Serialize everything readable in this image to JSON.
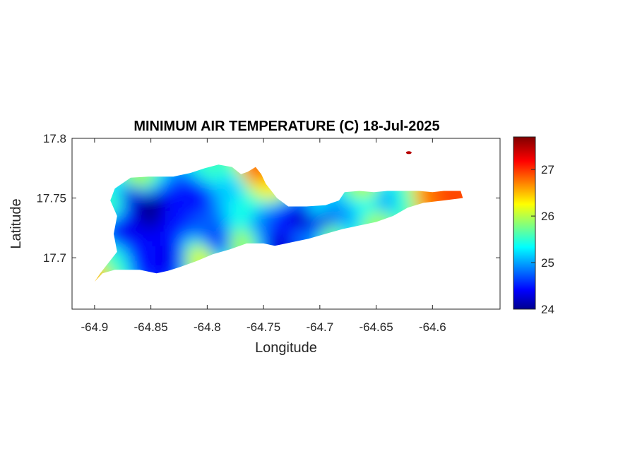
{
  "figure": {
    "title": "MINIMUM AIR TEMPERATURE (C) 18-Jul-2025",
    "xlabel": "Longitude",
    "ylabel": "Latitude"
  },
  "chart_data": {
    "type": "heatmap",
    "title": "MINIMUM AIR TEMPERATURE (C) 18-Jul-2025",
    "xlabel": "Longitude",
    "ylabel": "Latitude",
    "xlim": [
      -64.92,
      -64.54
    ],
    "ylim": [
      17.657,
      17.8
    ],
    "xticks": [
      -64.9,
      -64.85,
      -64.8,
      -64.75,
      -64.7,
      -64.65,
      -64.6
    ],
    "xtick_labels": [
      "-64.9",
      "-64.85",
      "-64.8",
      "-64.75",
      "-64.7",
      "-64.65",
      "-64.6"
    ],
    "yticks": [
      17.7,
      17.75,
      17.8
    ],
    "ytick_labels": [
      "17.7",
      "17.75",
      "17.8"
    ],
    "colorbar": {
      "colormap": "jet",
      "range": [
        24,
        27.7
      ],
      "ticks": [
        24,
        25,
        26,
        27
      ],
      "tick_labels": [
        "24",
        "25",
        "26",
        "27"
      ]
    },
    "grid": false,
    "island_outline": [
      [
        -64.9,
        17.68
      ],
      [
        -64.893,
        17.687
      ],
      [
        -64.882,
        17.69
      ],
      [
        -64.86,
        17.69
      ],
      [
        -64.845,
        17.687
      ],
      [
        -64.835,
        17.689
      ],
      [
        -64.825,
        17.692
      ],
      [
        -64.81,
        17.697
      ],
      [
        -64.795,
        17.703
      ],
      [
        -64.78,
        17.707
      ],
      [
        -64.765,
        17.712
      ],
      [
        -64.75,
        17.712
      ],
      [
        -64.74,
        17.71
      ],
      [
        -64.725,
        17.713
      ],
      [
        -64.71,
        17.716
      ],
      [
        -64.695,
        17.72
      ],
      [
        -64.68,
        17.724
      ],
      [
        -64.665,
        17.727
      ],
      [
        -64.65,
        17.73
      ],
      [
        -64.635,
        17.735
      ],
      [
        -64.622,
        17.742
      ],
      [
        -64.608,
        17.746
      ],
      [
        -64.59,
        17.748
      ],
      [
        -64.573,
        17.75
      ],
      [
        -64.575,
        17.756
      ],
      [
        -64.59,
        17.756
      ],
      [
        -64.6,
        17.755
      ],
      [
        -64.612,
        17.756
      ],
      [
        -64.625,
        17.756
      ],
      [
        -64.64,
        17.756
      ],
      [
        -64.652,
        17.755
      ],
      [
        -64.665,
        17.756
      ],
      [
        -64.678,
        17.755
      ],
      [
        -64.683,
        17.748
      ],
      [
        -64.695,
        17.744
      ],
      [
        -64.712,
        17.743
      ],
      [
        -64.728,
        17.743
      ],
      [
        -64.738,
        17.75
      ],
      [
        -64.748,
        17.762
      ],
      [
        -64.752,
        17.77
      ],
      [
        -64.757,
        17.776
      ],
      [
        -64.764,
        17.772
      ],
      [
        -64.77,
        17.77
      ],
      [
        -64.778,
        17.776
      ],
      [
        -64.79,
        17.778
      ],
      [
        -64.802,
        17.775
      ],
      [
        -64.815,
        17.771
      ],
      [
        -64.83,
        17.768
      ],
      [
        -64.852,
        17.768
      ],
      [
        -64.868,
        17.767
      ],
      [
        -64.882,
        17.758
      ],
      [
        -64.886,
        17.748
      ],
      [
        -64.88,
        17.735
      ],
      [
        -64.883,
        17.72
      ],
      [
        -64.88,
        17.705
      ],
      [
        -64.895,
        17.687
      ],
      [
        -64.9,
        17.68
      ]
    ],
    "temperature_field": [
      {
        "lon": -64.85,
        "lat": 17.74,
        "temp": 24.0
      },
      {
        "lon": -64.865,
        "lat": 17.75,
        "temp": 24.3
      },
      {
        "lon": -64.87,
        "lat": 17.725,
        "temp": 24.4
      },
      {
        "lon": -64.83,
        "lat": 17.735,
        "temp": 24.5
      },
      {
        "lon": -64.81,
        "lat": 17.75,
        "temp": 24.5
      },
      {
        "lon": -64.835,
        "lat": 17.7,
        "temp": 24.4
      },
      {
        "lon": -64.855,
        "lat": 17.697,
        "temp": 24.5
      },
      {
        "lon": -64.8,
        "lat": 17.725,
        "temp": 24.8
      },
      {
        "lon": -64.79,
        "lat": 17.713,
        "temp": 24.6
      },
      {
        "lon": -64.778,
        "lat": 17.757,
        "temp": 25.2
      },
      {
        "lon": -64.765,
        "lat": 17.74,
        "temp": 25.5
      },
      {
        "lon": -64.75,
        "lat": 17.73,
        "temp": 24.9
      },
      {
        "lon": -64.733,
        "lat": 17.712,
        "temp": 24.3
      },
      {
        "lon": -64.733,
        "lat": 17.728,
        "temp": 24.5
      },
      {
        "lon": -64.715,
        "lat": 17.73,
        "temp": 24.2
      },
      {
        "lon": -64.695,
        "lat": 17.73,
        "temp": 24.2
      },
      {
        "lon": -64.715,
        "lat": 17.717,
        "temp": 24.9
      },
      {
        "lon": -64.678,
        "lat": 17.735,
        "temp": 25.0
      },
      {
        "lon": -64.66,
        "lat": 17.745,
        "temp": 25.4
      },
      {
        "lon": -64.64,
        "lat": 17.746,
        "temp": 25.0
      },
      {
        "lon": -64.625,
        "lat": 17.746,
        "temp": 25.6
      },
      {
        "lon": -64.605,
        "lat": 17.75,
        "temp": 26.8
      },
      {
        "lon": -64.585,
        "lat": 17.752,
        "temp": 27.0
      },
      {
        "lon": -64.648,
        "lat": 17.73,
        "temp": 26.0
      },
      {
        "lon": -64.66,
        "lat": 17.754,
        "temp": 26.1
      },
      {
        "lon": -64.895,
        "lat": 17.683,
        "temp": 26.6
      },
      {
        "lon": -64.882,
        "lat": 17.692,
        "temp": 25.6
      },
      {
        "lon": -64.86,
        "lat": 17.765,
        "temp": 26.0
      },
      {
        "lon": -64.883,
        "lat": 17.745,
        "temp": 25.6
      },
      {
        "lon": -64.805,
        "lat": 17.7,
        "temp": 26.2
      },
      {
        "lon": -64.77,
        "lat": 17.712,
        "temp": 26.0
      },
      {
        "lon": -64.745,
        "lat": 17.76,
        "temp": 26.4
      },
      {
        "lon": -64.755,
        "lat": 17.772,
        "temp": 26.9
      },
      {
        "lon": -64.795,
        "lat": 17.775,
        "temp": 25.6
      },
      {
        "lon": -64.7,
        "lat": 17.74,
        "temp": 25.3
      },
      {
        "lon": -64.69,
        "lat": 17.721,
        "temp": 25.9
      }
    ],
    "isolated_points": [
      {
        "lon": -64.621,
        "lat": 17.788,
        "temp": 27.5
      }
    ]
  }
}
